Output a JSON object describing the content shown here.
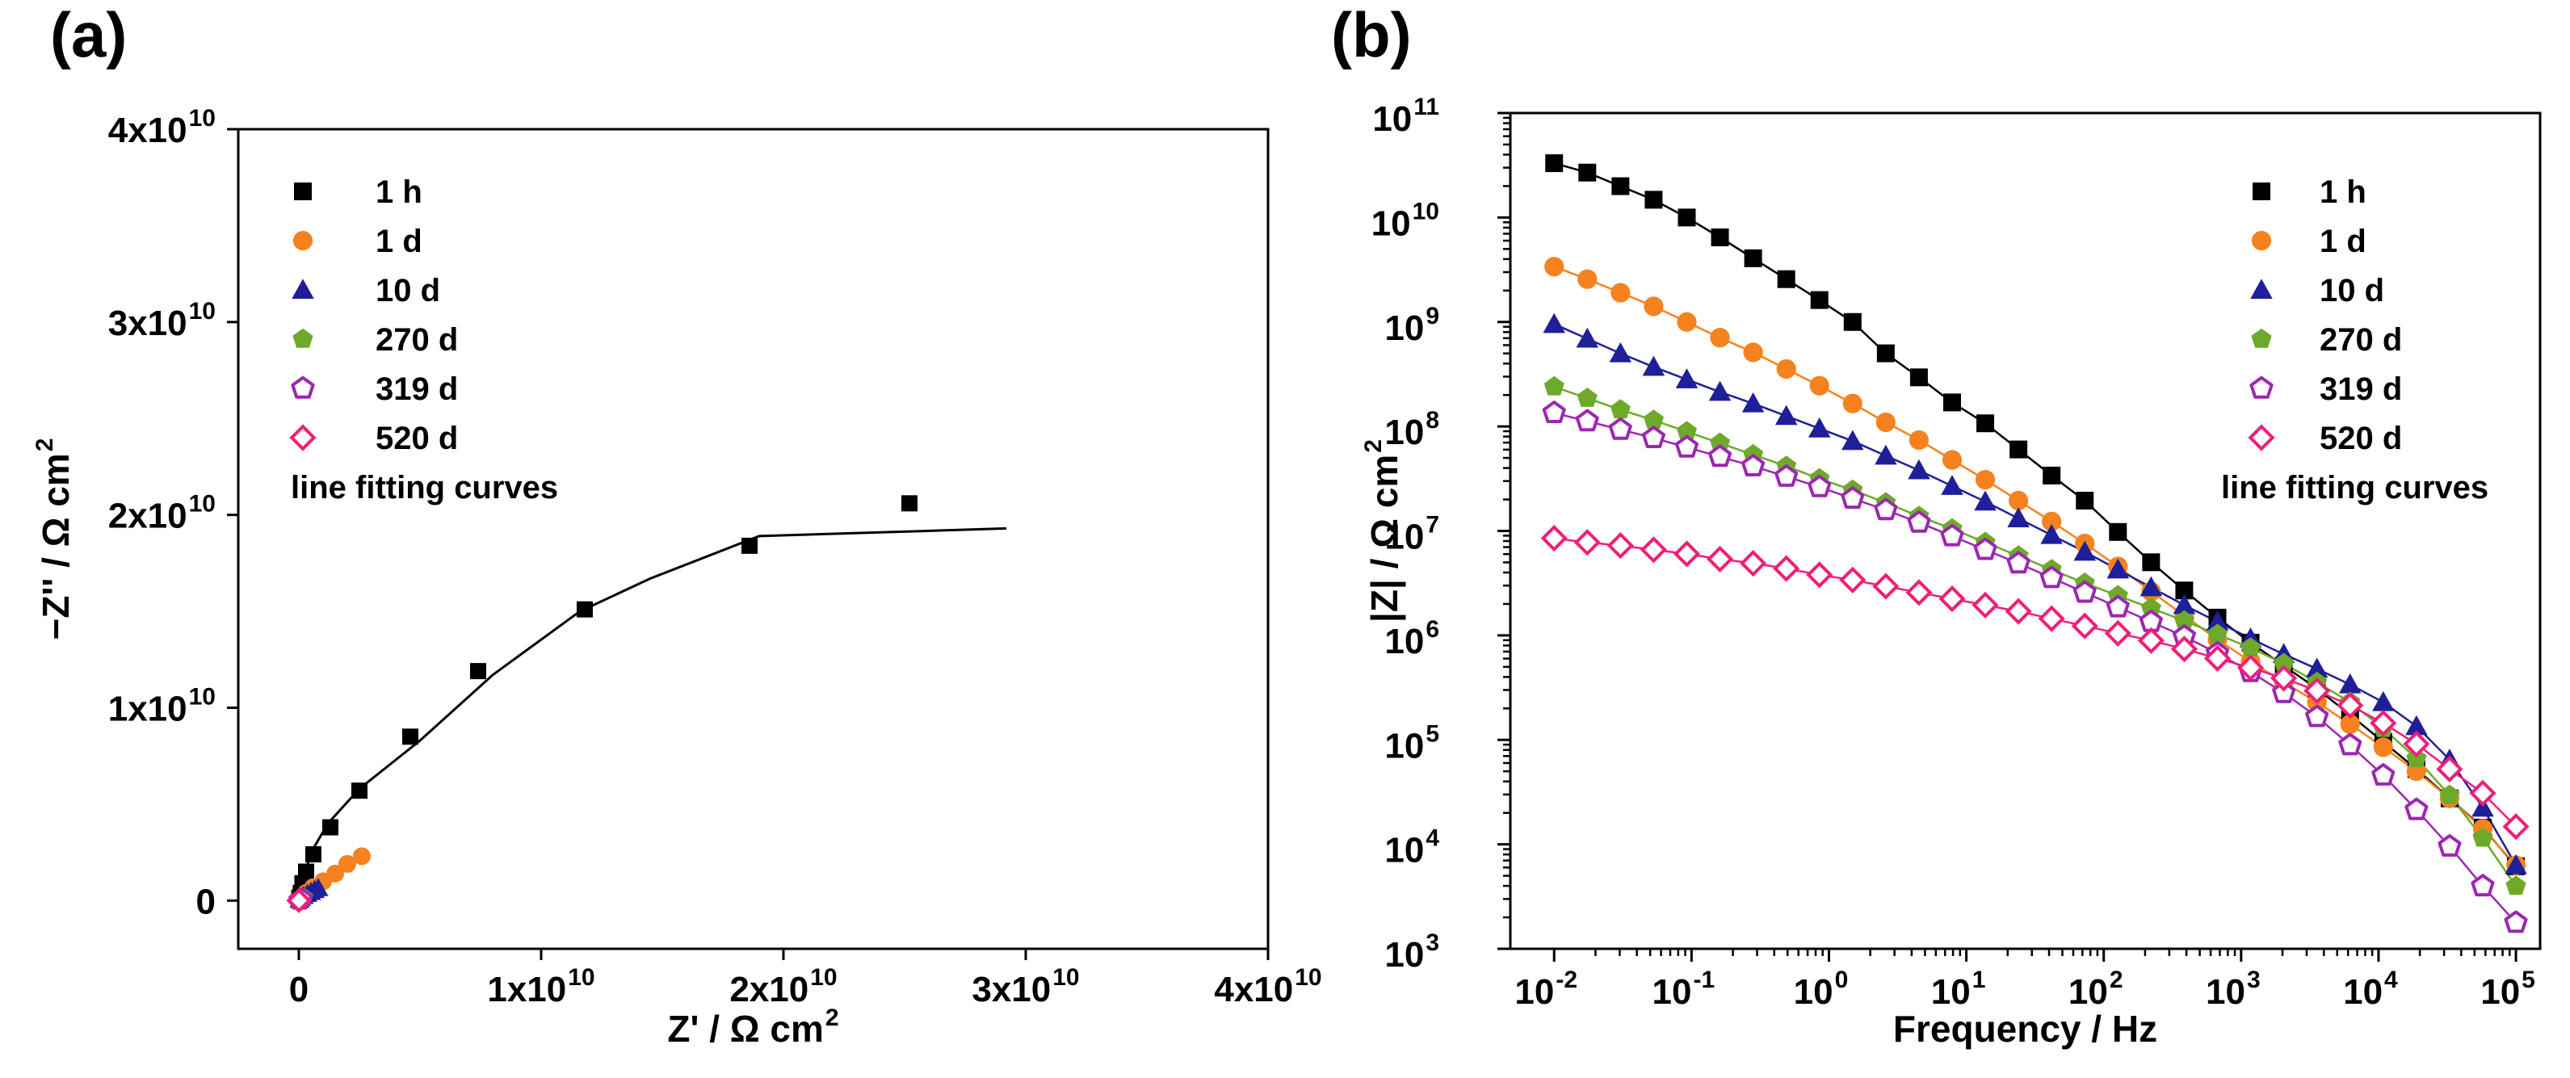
{
  "chart_data": [
    {
      "type": "scatter",
      "panel_label": "(a)",
      "xlabel": "Z' / Ω cm",
      "xlabel_sup": "2",
      "ylabel": "−Z'' / Ω cm",
      "ylabel_sup": "2",
      "xlim": [
        -2500000000.0,
        40000000000.0
      ],
      "ylim": [
        -2500000000.0,
        40000000000.0
      ],
      "x_ticks": [
        {
          "value": 0,
          "label": "0",
          "sup": ""
        },
        {
          "value": 10000000000.0,
          "label": "1x10",
          "sup": "10"
        },
        {
          "value": 20000000000.0,
          "label": "2x10",
          "sup": "10"
        },
        {
          "value": 30000000000.0,
          "label": "3x10",
          "sup": "10"
        },
        {
          "value": 40000000000.0,
          "label": "4x10",
          "sup": "10"
        }
      ],
      "y_ticks": [
        {
          "value": 0,
          "label": "0",
          "sup": ""
        },
        {
          "value": 10000000000.0,
          "label": "1x10",
          "sup": "10"
        },
        {
          "value": 20000000000.0,
          "label": "2x10",
          "sup": "10"
        },
        {
          "value": 30000000000.0,
          "label": "3x10",
          "sup": "10"
        },
        {
          "value": 40000000000.0,
          "label": "4x10",
          "sup": "10"
        }
      ],
      "legend_position": "top-left",
      "legend_fit_label": "line fitting curves",
      "series": [
        {
          "name": "1 h",
          "marker": "square",
          "color": "#000000",
          "filled": true,
          "x": [
            20000000.0,
            80000000.0,
            150000000.0,
            300000000.0,
            600000000.0,
            1300000000.0,
            2500000000.0,
            4600000000.0,
            7400000000.0,
            11800000000.0,
            18600000000.0,
            25200000000.0
          ],
          "y": [
            150000000.0,
            400000000.0,
            900000000.0,
            1500000000.0,
            2400000000.0,
            3800000000.0,
            5700000000.0,
            8500000000.0,
            11900000000.0,
            15100000000.0,
            18400000000.0,
            20600000000.0
          ]
        },
        {
          "name": "1 d",
          "marker": "circle",
          "color": "#f5821f",
          "filled": true,
          "x": [
            50000000.0,
            150000000.0,
            300000000.0,
            600000000.0,
            1000000000.0,
            1500000000.0,
            2000000000.0,
            2600000000.0
          ],
          "y": [
            50000000.0,
            200000000.0,
            400000000.0,
            700000000.0,
            1000000000.0,
            1400000000.0,
            1900000000.0,
            2300000000.0
          ]
        },
        {
          "name": "10 d",
          "marker": "triangle",
          "color": "#1f1f9a",
          "filled": true,
          "x": [
            30000000.0,
            100000000.0,
            200000000.0,
            350000000.0,
            500000000.0,
            650000000.0,
            800000000.0
          ],
          "y": [
            50000000.0,
            150000000.0,
            250000000.0,
            350000000.0,
            450000000.0,
            550000000.0,
            650000000.0
          ]
        },
        {
          "name": "270 d",
          "marker": "pentagon",
          "color": "#6ea92a",
          "filled": true,
          "x": [
            20000000.0,
            60000000.0,
            100000000.0,
            160000000.0,
            220000000.0
          ],
          "y": [
            20000000.0,
            50000000.0,
            90000000.0,
            120000000.0,
            160000000.0
          ]
        },
        {
          "name": "319 d",
          "marker": "pentagon",
          "color": "#9c27b0",
          "filled": false,
          "x": [
            20000000.0,
            50000000.0,
            80000000.0,
            120000000.0
          ],
          "y": [
            20000000.0,
            40000000.0,
            70000000.0,
            100000000.0
          ]
        },
        {
          "name": "520 d",
          "marker": "diamond",
          "color": "#f01e78",
          "filled": false,
          "x": [
            0,
            2000000.0,
            5000000.0,
            8000000.0
          ],
          "y": [
            0,
            2000000.0,
            4000000.0,
            6000000.0
          ]
        }
      ],
      "fit_lines": [
        {
          "name": "1 h",
          "color": "#000000",
          "x": [
            0,
            100000000.0,
            300000000.0,
            600000000.0,
            1200000000.0,
            2500000000.0,
            5000000000.0,
            8000000000.0,
            11600000000.0,
            14500000000.0,
            19000000000.0,
            29200000000.0
          ],
          "y": [
            0,
            800000000.0,
            1700000000.0,
            2700000000.0,
            4000000000.0,
            5800000000.0,
            8300000000.0,
            11700000000.0,
            15000000000.0,
            16700000000.0,
            18900000000.0,
            19300000000.0
          ]
        },
        {
          "name": "1 d",
          "color": "#f5821f",
          "x": [
            0,
            500000000.0,
            1000000000.0,
            1600000000.0,
            2200000000.0,
            2700000000.0
          ],
          "y": [
            0,
            600000000.0,
            1100000000.0,
            1600000000.0,
            2000000000.0,
            2300000000.0
          ]
        },
        {
          "name": "10 d",
          "color": "#1f1f9a",
          "x": [
            0,
            200000000.0,
            400000000.0,
            600000000.0,
            850000000.0
          ],
          "y": [
            0,
            250000000.0,
            400000000.0,
            550000000.0,
            680000000.0
          ]
        }
      ]
    },
    {
      "type": "scatter",
      "panel_label": "(b)",
      "xscale": "log",
      "yscale": "log",
      "xlabel": "Frequency / Hz",
      "ylabel": "|Z| / Ω cm",
      "ylabel_sup": "2",
      "xlim": [
        0.0048,
        150000
      ],
      "ylim": [
        1000,
        100000000000
      ],
      "x_ticks": [
        {
          "value": 0.01,
          "base": "10",
          "exp": "-2"
        },
        {
          "value": 0.1,
          "base": "10",
          "exp": "-1"
        },
        {
          "value": 1,
          "base": "10",
          "exp": "0"
        },
        {
          "value": 10,
          "base": "10",
          "exp": "1"
        },
        {
          "value": 100,
          "base": "10",
          "exp": "2"
        },
        {
          "value": 1000,
          "base": "10",
          "exp": "3"
        },
        {
          "value": 10000,
          "base": "10",
          "exp": "4"
        },
        {
          "value": 100000,
          "base": "10",
          "exp": "5"
        }
      ],
      "y_ticks": [
        {
          "value": 1000,
          "base": "10",
          "exp": "3"
        },
        {
          "value": 10000,
          "base": "10",
          "exp": "4"
        },
        {
          "value": 100000,
          "base": "10",
          "exp": "5"
        },
        {
          "value": 1000000,
          "base": "10",
          "exp": "6"
        },
        {
          "value": 10000000,
          "base": "10",
          "exp": "7"
        },
        {
          "value": 100000000,
          "base": "10",
          "exp": "8"
        },
        {
          "value": 1000000000,
          "base": "10",
          "exp": "9"
        },
        {
          "value": 10000000000,
          "base": "10",
          "exp": "10"
        },
        {
          "value": 100000000000,
          "base": "10",
          "exp": "11"
        }
      ],
      "legend_position": "top-right",
      "legend_fit_label": "line fitting curves",
      "series": [
        {
          "name": "1 h",
          "marker": "square",
          "color": "#000000",
          "filled": true,
          "log10_z": [
            10.52,
            10.43,
            10.3,
            10.17,
            10.0,
            9.81,
            9.61,
            9.41,
            9.21,
            9.0,
            8.7,
            8.47,
            8.23,
            8.03,
            7.78,
            7.53,
            7.29,
            6.99,
            6.7,
            6.43,
            6.17,
            5.93,
            5.71,
            5.49,
            5.24,
            4.98,
            4.72,
            4.44,
            4.16,
            3.79
          ]
        },
        {
          "name": "1 d",
          "marker": "circle",
          "color": "#f5821f",
          "filled": true,
          "log10_z": [
            9.53,
            9.41,
            9.28,
            9.15,
            9.0,
            8.85,
            8.71,
            8.55,
            8.39,
            8.22,
            8.04,
            7.87,
            7.68,
            7.49,
            7.29,
            7.09,
            6.88,
            6.66,
            6.42,
            6.19,
            5.96,
            5.75,
            5.55,
            5.36,
            5.15,
            4.93,
            4.7,
            4.44,
            4.15,
            3.8
          ]
        },
        {
          "name": "10 d",
          "marker": "triangle",
          "color": "#1f1f9a",
          "filled": true,
          "log10_z": [
            8.98,
            8.84,
            8.7,
            8.57,
            8.45,
            8.33,
            8.22,
            8.1,
            7.98,
            7.86,
            7.72,
            7.58,
            7.43,
            7.28,
            7.12,
            6.96,
            6.8,
            6.63,
            6.46,
            6.29,
            6.13,
            5.97,
            5.82,
            5.68,
            5.53,
            5.36,
            5.13,
            4.81,
            4.35,
            3.8
          ]
        },
        {
          "name": "270 d",
          "marker": "pentagon",
          "color": "#6ea92a",
          "filled": true,
          "log10_z": [
            8.38,
            8.27,
            8.16,
            8.06,
            7.95,
            7.84,
            7.73,
            7.62,
            7.5,
            7.39,
            7.27,
            7.14,
            7.02,
            6.89,
            6.76,
            6.63,
            6.5,
            6.38,
            6.26,
            6.14,
            6.01,
            5.88,
            5.73,
            5.55,
            5.36,
            5.11,
            4.82,
            4.47,
            4.06,
            3.6
          ]
        },
        {
          "name": "319 d",
          "marker": "pentagon",
          "color": "#9c27b0",
          "filled": false,
          "log10_z": [
            8.13,
            8.05,
            7.97,
            7.89,
            7.8,
            7.71,
            7.62,
            7.52,
            7.42,
            7.31,
            7.2,
            7.08,
            6.95,
            6.82,
            6.69,
            6.55,
            6.41,
            6.27,
            6.13,
            5.99,
            5.83,
            5.65,
            5.45,
            5.22,
            4.95,
            4.66,
            4.33,
            3.98,
            3.6,
            3.25
          ]
        },
        {
          "name": "520 d",
          "marker": "diamond",
          "color": "#f01e78",
          "filled": false,
          "log10_z": [
            6.93,
            6.89,
            6.86,
            6.82,
            6.78,
            6.73,
            6.69,
            6.64,
            6.58,
            6.53,
            6.47,
            6.41,
            6.35,
            6.29,
            6.23,
            6.16,
            6.09,
            6.02,
            5.95,
            5.87,
            5.78,
            5.69,
            5.59,
            5.47,
            5.33,
            5.16,
            4.96,
            4.72,
            4.49,
            4.17
          ]
        }
      ]
    }
  ]
}
